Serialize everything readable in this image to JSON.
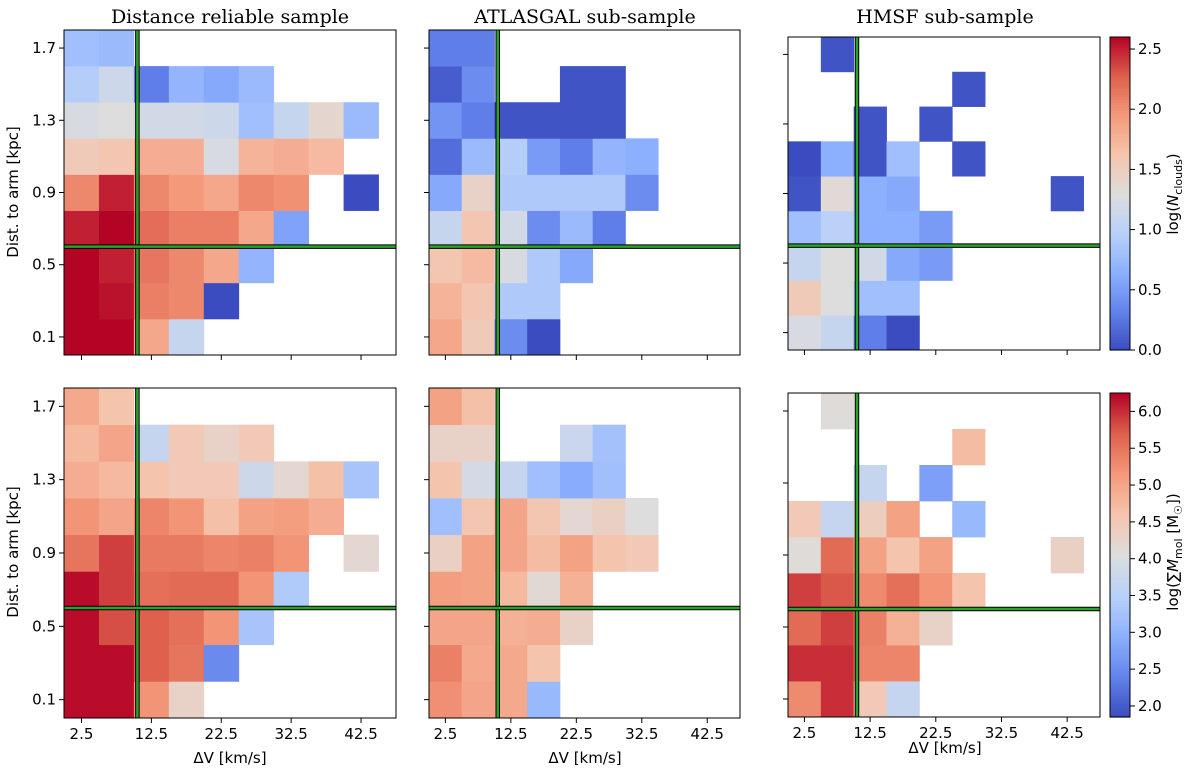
{
  "figure": {
    "titles": [
      "Distance reliable sample",
      "ATLASGAL sub-sample",
      "HMSF sub-sample"
    ],
    "ylabel": "Dist. to arm [kpc]",
    "xlabel": "ΔV [km/s]",
    "xticks": [
      "2.5",
      "12.5",
      "22.5",
      "32.5",
      "42.5"
    ],
    "yticks": [
      "0.1",
      "0.5",
      "0.9",
      "1.3",
      "1.7"
    ],
    "colorbars": [
      {
        "label": "log(N_clouds)",
        "vmin": 0.0,
        "vmax": 2.6,
        "ticks": [
          "0.0",
          "0.5",
          "1.0",
          "1.5",
          "2.0",
          "2.5"
        ],
        "tick_values": [
          0.0,
          0.5,
          1.0,
          1.5,
          2.0,
          2.5
        ]
      },
      {
        "label": "log(∑M_mol [M☉])",
        "vmin": 1.85,
        "vmax": 6.25,
        "ticks": [
          "2.0",
          "2.5",
          "3.0",
          "3.5",
          "4.0",
          "4.5",
          "5.0",
          "5.5",
          "6.0"
        ],
        "tick_values": [
          2.0,
          2.5,
          3.0,
          3.5,
          4.0,
          4.5,
          5.0,
          5.5,
          6.0
        ]
      }
    ],
    "colors": {
      "cmap_low": "#3b4cc0",
      "cmap_mid": "#dddddd",
      "cmap_high": "#b40426",
      "guide_line": "#2ca02c"
    }
  },
  "chart_data": [
    {
      "type": "heatmap",
      "panel": "top-left",
      "title": "Distance reliable sample",
      "xlabel": "",
      "ylabel": "Dist. to arm [kpc]",
      "colorbar": 0,
      "x_centers": [
        2.5,
        7.5,
        12.5,
        17.5,
        22.5,
        27.5,
        32.5,
        37.5,
        42.5
      ],
      "y_centers": [
        0.1,
        0.3,
        0.5,
        0.7,
        0.9,
        1.1,
        1.3,
        1.5,
        1.7
      ],
      "xlim": [
        0,
        47.5
      ],
      "ylim": [
        0,
        1.8
      ],
      "vline_x": 10.5,
      "hline_y": 0.6,
      "values": [
        [
          2.6,
          2.6,
          1.85,
          1.1,
          null,
          null,
          null,
          null,
          null
        ],
        [
          2.6,
          2.55,
          2.1,
          2.05,
          0.0,
          null,
          null,
          null,
          null
        ],
        [
          2.6,
          2.5,
          2.15,
          2.05,
          1.85,
          0.7,
          null,
          null,
          null
        ],
        [
          2.5,
          2.6,
          2.2,
          2.1,
          2.1,
          1.85,
          0.55,
          null,
          null
        ],
        [
          2.05,
          2.5,
          2.05,
          1.95,
          1.85,
          2.05,
          2.0,
          null,
          0.0
        ],
        [
          1.55,
          1.6,
          1.8,
          1.8,
          1.25,
          1.75,
          1.8,
          1.7,
          null
        ],
        [
          1.25,
          1.3,
          1.2,
          1.2,
          1.15,
          0.8,
          1.1,
          1.4,
          0.75
        ],
        [
          0.95,
          1.15,
          0.3,
          0.7,
          0.6,
          0.75,
          null,
          null,
          null
        ],
        [
          0.8,
          0.75,
          null,
          null,
          null,
          null,
          null,
          null,
          null
        ]
      ]
    },
    {
      "type": "heatmap",
      "panel": "top-middle",
      "title": "ATLASGAL sub-sample",
      "xlabel": "",
      "ylabel": "",
      "colorbar": 0,
      "x_centers": [
        2.5,
        7.5,
        12.5,
        17.5,
        22.5,
        27.5,
        32.5,
        37.5,
        42.5
      ],
      "y_centers": [
        0.1,
        0.3,
        0.5,
        0.7,
        0.9,
        1.1,
        1.3,
        1.5,
        1.7
      ],
      "xlim": [
        0,
        47.5
      ],
      "ylim": [
        0,
        1.8
      ],
      "vline_x": 10.5,
      "hline_y": 0.6,
      "values": [
        [
          1.85,
          1.55,
          0.4,
          0.0,
          null,
          null,
          null,
          null,
          null
        ],
        [
          1.75,
          1.6,
          0.9,
          0.9,
          null,
          null,
          null,
          null,
          null
        ],
        [
          1.6,
          1.7,
          1.25,
          0.9,
          0.6,
          null,
          null,
          null,
          null
        ],
        [
          1.1,
          1.6,
          1.2,
          0.4,
          0.75,
          0.3,
          null,
          null,
          null
        ],
        [
          0.6,
          1.45,
          0.9,
          0.9,
          0.9,
          0.9,
          0.4,
          null,
          null
        ],
        [
          0.2,
          0.75,
          0.95,
          0.5,
          0.3,
          0.7,
          0.65,
          null,
          null
        ],
        [
          0.45,
          0.3,
          0.05,
          0.05,
          0.05,
          0.05,
          null,
          null,
          null
        ],
        [
          0.1,
          0.4,
          null,
          null,
          0.05,
          0.05,
          null,
          null,
          null
        ],
        [
          0.3,
          0.3,
          null,
          null,
          null,
          null,
          null,
          null,
          null
        ]
      ]
    },
    {
      "type": "heatmap",
      "panel": "top-right",
      "title": "HMSF sub-sample",
      "xlabel": "",
      "ylabel": "",
      "colorbar": 0,
      "x_centers": [
        2.5,
        7.5,
        12.5,
        17.5,
        22.5,
        27.5,
        32.5,
        37.5,
        42.5
      ],
      "y_centers": [
        0.1,
        0.3,
        0.5,
        0.7,
        0.9,
        1.1,
        1.3,
        1.5,
        1.7
      ],
      "xlim": [
        0,
        47.5
      ],
      "ylim": [
        0,
        1.8
      ],
      "vline_x": 10.5,
      "hline_y": 0.6,
      "values": [
        [
          1.25,
          1.1,
          0.3,
          0.0,
          null,
          null,
          null,
          null,
          null
        ],
        [
          1.55,
          1.3,
          0.8,
          0.8,
          null,
          null,
          null,
          null,
          null
        ],
        [
          1.1,
          1.3,
          1.2,
          0.6,
          0.5,
          null,
          null,
          null,
          null
        ],
        [
          0.8,
          1.0,
          0.65,
          0.65,
          0.5,
          null,
          null,
          null,
          null
        ],
        [
          0.05,
          1.35,
          0.65,
          0.6,
          null,
          null,
          null,
          null,
          0.05
        ],
        [
          0.0,
          0.65,
          0.05,
          0.8,
          null,
          0.05,
          null,
          null,
          null
        ],
        [
          null,
          null,
          0.05,
          null,
          0.05,
          null,
          null,
          null,
          null
        ],
        [
          null,
          null,
          null,
          null,
          null,
          0.05,
          null,
          null,
          null
        ],
        [
          null,
          0.05,
          null,
          null,
          null,
          null,
          null,
          null,
          null
        ]
      ]
    },
    {
      "type": "heatmap",
      "panel": "bottom-left",
      "title": "",
      "xlabel": "ΔV [km/s]",
      "ylabel": "Dist. to arm [kpc]",
      "colorbar": 1,
      "x_centers": [
        2.5,
        7.5,
        12.5,
        17.5,
        22.5,
        27.5,
        32.5,
        37.5,
        42.5
      ],
      "y_centers": [
        0.1,
        0.3,
        0.5,
        0.7,
        0.9,
        1.1,
        1.3,
        1.5,
        1.7
      ],
      "xlim": [
        0,
        47.5
      ],
      "ylim": [
        0,
        1.8
      ],
      "vline_x": 10.5,
      "hline_y": 0.6,
      "values": [
        [
          6.2,
          6.2,
          5.2,
          4.3,
          null,
          null,
          null,
          null,
          null
        ],
        [
          6.2,
          6.2,
          5.7,
          5.5,
          2.5,
          null,
          null,
          null,
          null
        ],
        [
          6.2,
          5.8,
          5.7,
          5.55,
          5.2,
          3.3,
          null,
          null,
          null
        ],
        [
          6.2,
          5.9,
          5.55,
          5.6,
          5.6,
          5.2,
          3.4,
          null,
          null
        ],
        [
          5.5,
          5.9,
          5.45,
          5.45,
          5.35,
          5.4,
          5.2,
          null,
          4.2
        ],
        [
          5.2,
          5.0,
          5.35,
          5.2,
          4.65,
          5.05,
          5.1,
          4.9,
          null
        ],
        [
          4.9,
          4.75,
          4.6,
          4.5,
          4.5,
          3.8,
          4.2,
          4.65,
          3.3
        ],
        [
          4.75,
          5.0,
          3.7,
          4.5,
          4.3,
          4.5,
          null,
          null,
          null
        ],
        [
          4.95,
          4.6,
          null,
          null,
          null,
          null,
          null,
          null,
          null
        ]
      ]
    },
    {
      "type": "heatmap",
      "panel": "bottom-middle",
      "title": "",
      "xlabel": "ΔV [km/s]",
      "ylabel": "",
      "colorbar": 1,
      "x_centers": [
        2.5,
        7.5,
        12.5,
        17.5,
        22.5,
        27.5,
        32.5,
        37.5,
        42.5
      ],
      "y_centers": [
        0.1,
        0.3,
        0.5,
        0.7,
        0.9,
        1.1,
        1.3,
        1.5,
        1.7
      ],
      "xlim": [
        0,
        47.5
      ],
      "ylim": [
        0,
        1.8
      ],
      "vline_x": 10.5,
      "hline_y": 0.6,
      "values": [
        [
          5.25,
          5.0,
          4.95,
          3.1,
          null,
          null,
          null,
          null,
          null
        ],
        [
          5.4,
          4.95,
          4.95,
          4.6,
          null,
          null,
          null,
          null,
          null
        ],
        [
          5.0,
          5.0,
          4.85,
          4.9,
          4.3,
          null,
          null,
          null,
          null
        ],
        [
          5.1,
          5.05,
          4.75,
          4.15,
          4.85,
          null,
          null,
          null,
          null
        ],
        [
          4.35,
          5.05,
          5.0,
          4.7,
          5.05,
          4.6,
          4.5,
          null,
          null
        ],
        [
          3.2,
          4.55,
          5.0,
          4.55,
          4.2,
          4.35,
          4.05,
          null,
          null
        ],
        [
          4.6,
          3.9,
          3.7,
          3.2,
          2.9,
          3.2,
          null,
          null,
          null
        ],
        [
          4.3,
          4.3,
          null,
          null,
          3.75,
          3.25,
          null,
          null,
          null
        ],
        [
          5.05,
          4.65,
          null,
          null,
          null,
          null,
          null,
          null,
          null
        ]
      ]
    },
    {
      "type": "heatmap",
      "panel": "bottom-right",
      "title": "",
      "xlabel": "ΔV [km/s]",
      "ylabel": "",
      "colorbar": 1,
      "x_centers": [
        2.5,
        7.5,
        12.5,
        17.5,
        22.5,
        27.5,
        32.5,
        37.5,
        42.5
      ],
      "y_centers": [
        0.1,
        0.3,
        0.5,
        0.7,
        0.9,
        1.1,
        1.3,
        1.5,
        1.7
      ],
      "xlim": [
        0,
        47.5
      ],
      "ylim": [
        0,
        1.8
      ],
      "vline_x": 10.5,
      "hline_y": 0.6,
      "values": [
        [
          5.3,
          6.0,
          4.5,
          3.7,
          null,
          null,
          null,
          null,
          null
        ],
        [
          6.0,
          6.0,
          5.35,
          5.35,
          null,
          null,
          null,
          null,
          null
        ],
        [
          5.6,
          5.9,
          5.4,
          4.85,
          4.3,
          null,
          null,
          null,
          null
        ],
        [
          5.9,
          5.75,
          5.3,
          5.55,
          5.2,
          4.6,
          null,
          null,
          null
        ],
        [
          4.1,
          5.6,
          5.05,
          4.6,
          5.05,
          null,
          null,
          null,
          4.35
        ],
        [
          4.5,
          3.7,
          4.4,
          5.05,
          null,
          3.1,
          null,
          null,
          null
        ],
        [
          null,
          null,
          3.7,
          null,
          2.75,
          null,
          null,
          null,
          null
        ],
        [
          null,
          null,
          null,
          null,
          null,
          4.7,
          null,
          null,
          null
        ],
        [
          null,
          4.1,
          null,
          null,
          null,
          null,
          null,
          null,
          null
        ]
      ]
    }
  ]
}
